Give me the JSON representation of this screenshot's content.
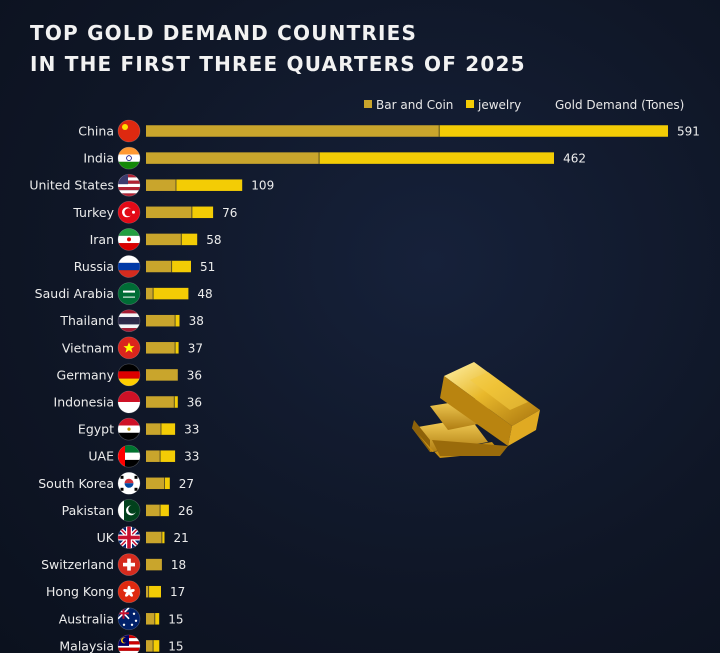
{
  "title": {
    "line1": "TOP GOLD DEMAND COUNTRIES",
    "line2": "IN THE FIRST THREE QUARTERS OF 2025"
  },
  "legend": {
    "bar_and_coin": "Bar and Coin",
    "jewelry": "jewelry",
    "total": "Gold Demand (Tones)"
  },
  "colors": {
    "bar_and_coin": "#c9a52c",
    "jewelry": "#f3cc05",
    "background": "#0f1626"
  },
  "chart_data": {
    "type": "bar",
    "orientation": "horizontal",
    "stacked": true,
    "title": "TOP GOLD DEMAND COUNTRIES IN THE FIRST THREE QUARTERS OF 2025",
    "xlabel": "Gold Demand (Tones)",
    "categories": [
      "China",
      "India",
      "United States",
      "Turkey",
      "Iran",
      "Russia",
      "Saudi Arabia",
      "Thailand",
      "Vietnam",
      "Germany",
      "Indonesia",
      "Egypt",
      "UAE",
      "South Korea",
      "Pakistan",
      "UK",
      "Switzerland",
      "Hong Kong",
      "Australia",
      "Malaysia"
    ],
    "totals": [
      591,
      462,
      109,
      76,
      58,
      51,
      48,
      38,
      37,
      36,
      36,
      33,
      33,
      27,
      26,
      21,
      18,
      17,
      15,
      15
    ],
    "series": [
      {
        "name": "Bar and Coin",
        "values": [
          332,
          196,
          34,
          52,
          40,
          29,
          8,
          33,
          33,
          36,
          32,
          17,
          16,
          21,
          16,
          18,
          18,
          3,
          10,
          8
        ]
      },
      {
        "name": "jewelry",
        "values": [
          259,
          266,
          75,
          24,
          18,
          22,
          40,
          5,
          4,
          0,
          4,
          16,
          17,
          6,
          10,
          3,
          0,
          14,
          5,
          7
        ]
      }
    ],
    "xlim": [
      0,
      591
    ],
    "legend_position": "top-right"
  },
  "flags": [
    "china",
    "india",
    "united-states",
    "turkey",
    "iran",
    "russia",
    "saudi-arabia",
    "thailand",
    "vietnam",
    "germany",
    "indonesia",
    "egypt",
    "uae",
    "south-korea",
    "pakistan",
    "uk",
    "switzerland",
    "hong-kong",
    "australia",
    "malaysia"
  ],
  "illustration": "gold-bars-icon"
}
